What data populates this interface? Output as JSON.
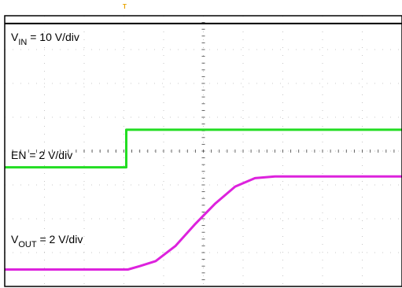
{
  "chart_data": {
    "type": "line",
    "title": "",
    "xlabel": "",
    "ylabel": "",
    "grid": true,
    "divisions": {
      "x": 10,
      "y": 8
    },
    "trigger_marker": "T",
    "x_unit": "div",
    "xlim": [
      0,
      10
    ],
    "ylim": [
      0,
      8
    ],
    "colors": {
      "vin": "#000000",
      "en": "#22dd22",
      "vout": "#dd22dd",
      "grid": "#999999",
      "frame": "#000000",
      "trigger": "#e8a400"
    },
    "series": [
      {
        "key": "vin",
        "name_main": "V",
        "name_sub": "IN",
        "name_suffix": " = 10 V/div",
        "x": [
          0,
          10
        ],
        "y": [
          7.77,
          7.77
        ]
      },
      {
        "key": "en",
        "name_main": "EN = 2 V/div",
        "name_sub": "",
        "name_suffix": "",
        "x": [
          0,
          3.06,
          3.06,
          10
        ],
        "y": [
          3.52,
          3.52,
          4.63,
          4.63
        ]
      },
      {
        "key": "vout",
        "name_main": "V",
        "name_sub": "OUT",
        "name_suffix": " = 2 V/div",
        "x": [
          0,
          3.1,
          3.4,
          3.8,
          4.3,
          4.8,
          5.3,
          5.8,
          6.3,
          6.8,
          10
        ],
        "y": [
          0.5,
          0.5,
          0.6,
          0.75,
          1.2,
          1.85,
          2.45,
          2.95,
          3.2,
          3.25,
          3.25
        ]
      }
    ]
  }
}
